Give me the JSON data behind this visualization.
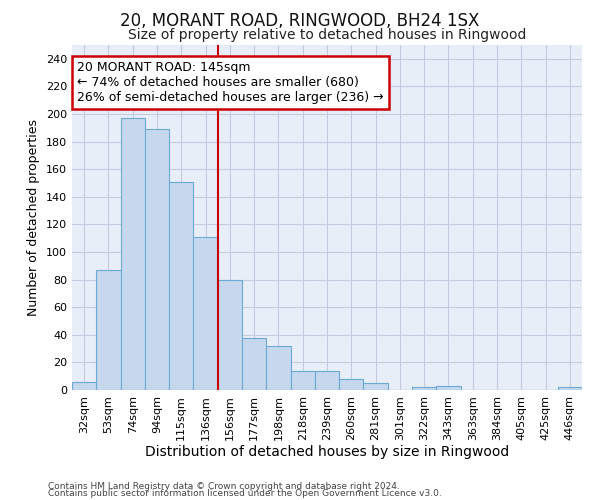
{
  "title1": "20, MORANT ROAD, RINGWOOD, BH24 1SX",
  "title2": "Size of property relative to detached houses in Ringwood",
  "xlabel": "Distribution of detached houses by size in Ringwood",
  "ylabel": "Number of detached properties",
  "categories": [
    "32sqm",
    "53sqm",
    "74sqm",
    "94sqm",
    "115sqm",
    "136sqm",
    "156sqm",
    "177sqm",
    "198sqm",
    "218sqm",
    "239sqm",
    "260sqm",
    "281sqm",
    "301sqm",
    "322sqm",
    "343sqm",
    "363sqm",
    "384sqm",
    "405sqm",
    "425sqm",
    "446sqm"
  ],
  "values": [
    6,
    87,
    197,
    189,
    151,
    111,
    80,
    38,
    32,
    14,
    14,
    8,
    5,
    0,
    2,
    3,
    0,
    0,
    0,
    0,
    2
  ],
  "bar_color": "#c5d8ee",
  "bar_edge_color": "#6aaad4",
  "annotation_text_line1": "20 MORANT ROAD: 145sqm",
  "annotation_text_line2": "← 74% of detached houses are smaller (680)",
  "annotation_text_line3": "26% of semi-detached houses are larger (236) →",
  "annotation_box_color": "#ffffff",
  "annotation_box_edge_color": "#cc0000",
  "vline_color": "#cc0000",
  "ylim": [
    0,
    250
  ],
  "yticks": [
    0,
    20,
    40,
    60,
    80,
    100,
    120,
    140,
    160,
    180,
    200,
    220,
    240
  ],
  "footnote1": "Contains HM Land Registry data © Crown copyright and database right 2024.",
  "footnote2": "Contains public sector information licensed under the Open Government Licence v3.0.",
  "bg_color": "#ffffff",
  "plot_bg_color": "#e8eef8",
  "grid_color": "#c0cce0",
  "title1_fontsize": 12,
  "title2_fontsize": 10,
  "xlabel_fontsize": 10,
  "ylabel_fontsize": 9,
  "tick_fontsize": 8,
  "annotation_fontsize": 9,
  "footnote_fontsize": 6.5
}
